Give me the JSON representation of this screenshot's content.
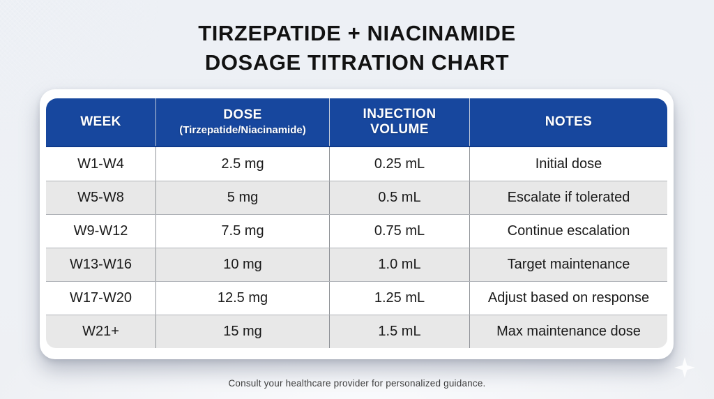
{
  "page": {
    "title_line1": "TIRZEPATIDE + NIACINAMIDE",
    "title_line2": "DOSAGE TITRATION CHART",
    "footer_note": "Consult your healthcare provider for personalized guidance."
  },
  "chart_data": {
    "type": "table",
    "title": "TIRZEPATIDE + NIACINAMIDE DOSAGE TITRATION CHART",
    "columns": [
      {
        "label": "WEEK",
        "sublabel": ""
      },
      {
        "label": "DOSE",
        "sublabel": "(Tirzepatide/Niacinamide)"
      },
      {
        "label": "INJECTION VOLUME",
        "sublabel": ""
      },
      {
        "label": "NOTES",
        "sublabel": ""
      }
    ],
    "rows": [
      [
        "W1-W4",
        "2.5 mg",
        "0.25 mL",
        "Initial dose"
      ],
      [
        "W5-W8",
        "5 mg",
        "0.5 mL",
        "Escalate if tolerated"
      ],
      [
        "W9-W12",
        "7.5 mg",
        "0.75 mL",
        "Continue escalation"
      ],
      [
        "W13-W16",
        "10 mg",
        "1.0 mL",
        "Target maintenance"
      ],
      [
        "W17-W20",
        "12.5 mg",
        "1.25 mL",
        "Adjust based on response"
      ],
      [
        "W21+",
        "15 mg",
        "1.5 mL",
        "Max maintenance dose"
      ]
    ]
  },
  "colors": {
    "header_bg": "#17479E",
    "header_border_bottom": "#0E3A8C",
    "header_text": "#FFFFFF",
    "row_bg": "#FFFFFF",
    "row_alt_bg": "#E8E8E8",
    "page_bg": "#EDF0F5",
    "title_text": "#121212",
    "body_text": "#1A1A1A"
  },
  "icons": {
    "sparkle": "four-point-star"
  }
}
